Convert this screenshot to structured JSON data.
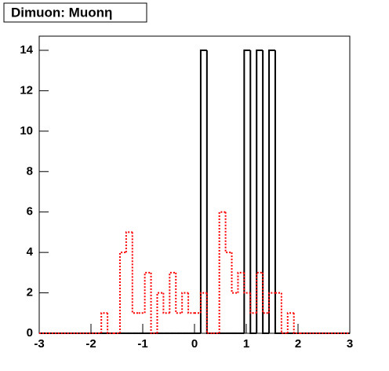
{
  "chart_data": {
    "type": "histogram",
    "title": "Dimuon: Muonη",
    "bins": [
      -3,
      -2.88,
      -2.76,
      -2.64,
      -2.52,
      -2.4,
      -2.28,
      -2.16,
      -2.04,
      -1.92,
      -1.8,
      -1.68,
      -1.56,
      -1.44,
      -1.32,
      -1.2,
      -1.08,
      -0.96,
      -0.84,
      -0.72,
      -0.6,
      -0.48,
      -0.36,
      -0.24,
      -0.12,
      0,
      0.12,
      0.24,
      0.36,
      0.48,
      0.6,
      0.72,
      0.84,
      0.96,
      1.08,
      1.2,
      1.32,
      1.44,
      1.56,
      1.68,
      1.8,
      1.92,
      2.04,
      2.16,
      2.28,
      2.4,
      2.52,
      2.64,
      2.76,
      2.88,
      3
    ],
    "series": [
      {
        "color": "#000000",
        "style": "solid",
        "values": [
          0,
          0,
          0,
          0,
          0,
          0,
          0,
          0,
          0,
          0,
          0,
          0,
          0,
          0,
          0,
          0,
          0,
          0,
          0,
          0,
          0,
          0,
          0,
          0,
          0,
          0,
          14,
          0,
          0,
          0,
          0,
          0,
          0,
          14,
          0,
          14,
          0,
          14,
          0,
          0,
          0,
          0,
          0,
          0,
          0,
          0,
          0,
          0,
          0,
          0
        ]
      },
      {
        "color": "#ff0000",
        "style": "dotted",
        "values": [
          0,
          0,
          0,
          0,
          0,
          0,
          0,
          0,
          0,
          0,
          1,
          0,
          0,
          4,
          5,
          1,
          1,
          3,
          0,
          2,
          1,
          3,
          1,
          2,
          1,
          1,
          2,
          0,
          0,
          6,
          4,
          2,
          3,
          2,
          1,
          3,
          1,
          2,
          2,
          0,
          1,
          0,
          0,
          0,
          0,
          0,
          0,
          0,
          0,
          0
        ]
      }
    ],
    "xlim": [
      -3,
      3
    ],
    "ylim": [
      0,
      14.7
    ],
    "xticks": [
      -3,
      -2,
      -1,
      0,
      1,
      2,
      3
    ],
    "yticks": [
      0,
      2,
      4,
      6,
      8,
      10,
      12,
      14
    ]
  }
}
